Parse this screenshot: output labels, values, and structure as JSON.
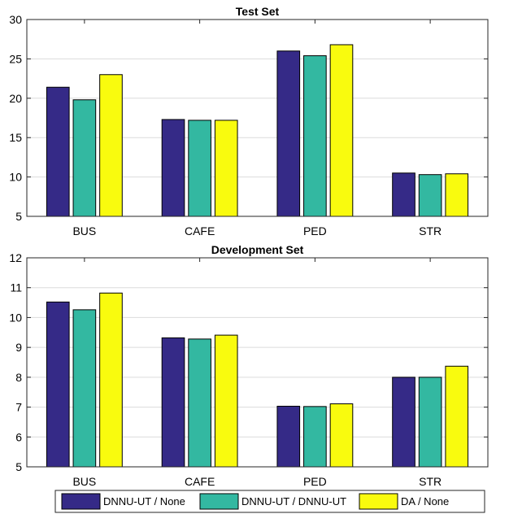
{
  "chart_data": [
    {
      "type": "bar",
      "title": "Test Set",
      "xlabel": "",
      "ylabel": "",
      "categories": [
        "BUS",
        "CAFE",
        "PED",
        "STR"
      ],
      "series": [
        {
          "name": "DNNU-UT / None",
          "values": [
            21.4,
            17.3,
            26.0,
            10.5
          ]
        },
        {
          "name": "DNNU-UT / DNNU-UT",
          "values": [
            19.8,
            17.2,
            25.4,
            10.3
          ]
        },
        {
          "name": "DA / None",
          "values": [
            23.0,
            17.2,
            26.8,
            10.4
          ]
        }
      ],
      "ylim": [
        5,
        30
      ],
      "yticks": [
        "5",
        "10",
        "15",
        "20",
        "25",
        "30"
      ],
      "grid": true
    },
    {
      "type": "bar",
      "title": "Development Set",
      "xlabel": "",
      "ylabel": "",
      "categories": [
        "BUS",
        "CAFE",
        "PED",
        "STR"
      ],
      "series": [
        {
          "name": "DNNU-UT / None",
          "values": [
            10.52,
            9.32,
            7.03,
            8.0
          ]
        },
        {
          "name": "DNNU-UT / DNNU-UT",
          "values": [
            10.26,
            9.28,
            7.02,
            8.0
          ]
        },
        {
          "name": "DA / None",
          "values": [
            10.82,
            9.41,
            7.11,
            8.37
          ]
        }
      ],
      "ylim": [
        5,
        12
      ],
      "yticks": [
        "5",
        "6",
        "7",
        "8",
        "9",
        "10",
        "11",
        "12"
      ],
      "grid": true
    }
  ],
  "legend": {
    "placement": "bottom",
    "items": [
      {
        "label": "DNNU-UT / None",
        "color": "#352a87"
      },
      {
        "label": "DNNU-UT / DNNU-UT",
        "color": "#33b8a1"
      },
      {
        "label": "DA / None",
        "color": "#f9fb0e"
      }
    ]
  },
  "colors": [
    "#352a87",
    "#33b8a1",
    "#f9fb0e"
  ]
}
